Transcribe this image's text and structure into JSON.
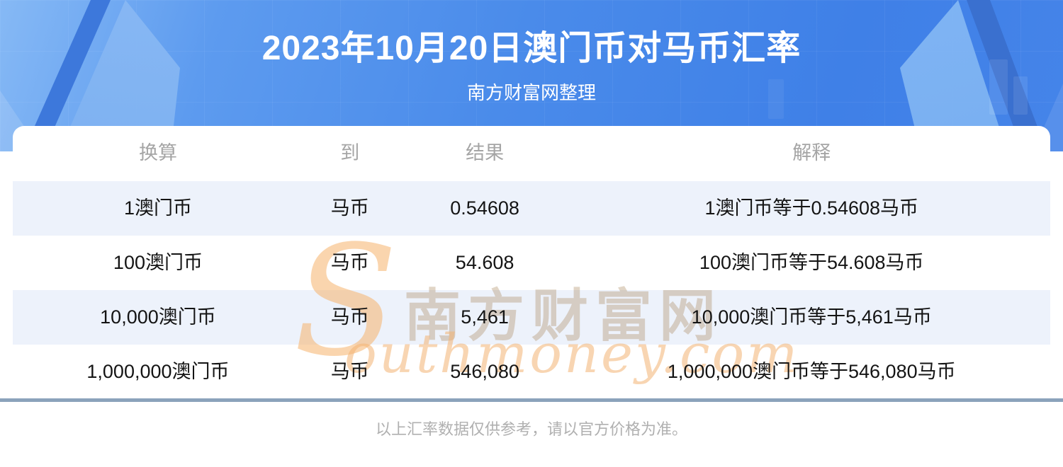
{
  "banner": {
    "title": "2023年10月20日澳门币对马币汇率",
    "subtitle": "南方财富网整理"
  },
  "table": {
    "columns": [
      "换算",
      "到",
      "结果",
      "解释"
    ],
    "rows": [
      [
        "1澳门币",
        "马币",
        "0.54608",
        "1澳门币等于0.54608马币"
      ],
      [
        "100澳门币",
        "马币",
        "54.608",
        "100澳门币等于54.608马币"
      ],
      [
        "10,000澳门币",
        "马币",
        "5,461",
        "10,000澳门币等于5,461马币"
      ],
      [
        "1,000,000澳门币",
        "马币",
        "546,080",
        "1,000,000澳门币等于546,080马币"
      ]
    ]
  },
  "watermark": {
    "swoosh_letter": "S",
    "cjk_text": "南方财富网",
    "latin_text": "outhmoney.com"
  },
  "footer": {
    "disclaimer": "以上汇率数据仅供参考，请以官方价格为准。"
  },
  "colors": {
    "banner_blue_light": "#86b9f5",
    "banner_blue": "#4a8bea",
    "banner_blue_dark_band": "#3a70cf",
    "row_stripe": "#EDF2FB",
    "divider": "#8BA2BB",
    "watermark_orange": "#f3b273",
    "watermark_tan": "#a88359",
    "header_text_gray": "#A5A5A5",
    "cell_text": "#141414"
  }
}
